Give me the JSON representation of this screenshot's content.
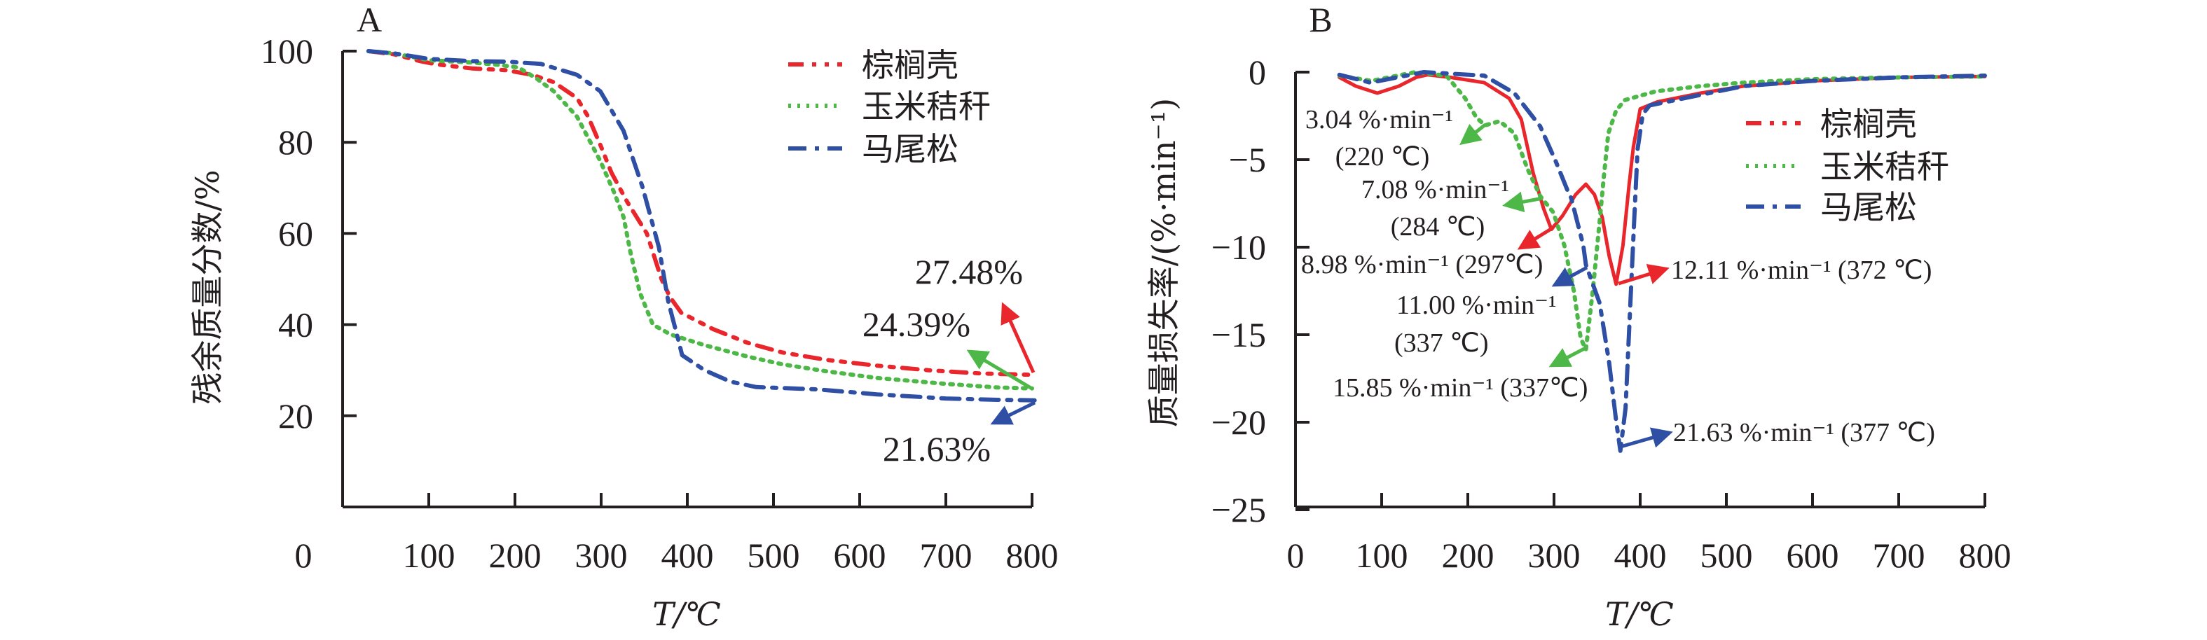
{
  "chart_data": [
    {
      "panel": "A",
      "type": "line",
      "title": "A",
      "xlabel": "T/℃",
      "ylabel": "残余质量分数/%",
      "xlim": [
        0,
        800
      ],
      "ylim": [
        0,
        100
      ],
      "xticks": [
        0,
        100,
        200,
        300,
        400,
        500,
        600,
        700,
        800
      ],
      "yticks": [
        20,
        40,
        60,
        80,
        100
      ],
      "grid": false,
      "legend_position": "top-right",
      "series": [
        {
          "name": "棕榈壳",
          "color": "#e8262b",
          "style": "dash-dot-dot",
          "points": [
            [
              30,
              100
            ],
            [
              60,
              99.3
            ],
            [
              90,
              97.8
            ],
            [
              109,
              97.1
            ],
            [
              150,
              96.2
            ],
            [
              190,
              95.8
            ],
            [
              220,
              94.8
            ],
            [
              245,
              93.2
            ],
            [
              272,
              89.7
            ],
            [
              285,
              85.6
            ],
            [
              300,
              79
            ],
            [
              312,
              73.3
            ],
            [
              330,
              67
            ],
            [
              353,
              60
            ],
            [
              370,
              50
            ],
            [
              380,
              46
            ],
            [
              393,
              42.6
            ],
            [
              430,
              39
            ],
            [
              470,
              36
            ],
            [
              510,
              33.9
            ],
            [
              560,
              32.3
            ],
            [
              620,
              31.0
            ],
            [
              680,
              30.0
            ],
            [
              740,
              29.3
            ],
            [
              796,
              29.0
            ]
          ]
        },
        {
          "name": "玉米秸秆",
          "color": "#4db848",
          "style": "dotted",
          "points": [
            [
              30,
              100
            ],
            [
              60,
              99.5
            ],
            [
              100,
              98
            ],
            [
              150,
              97.5
            ],
            [
              180,
              97
            ],
            [
              204,
              96.4
            ],
            [
              225,
              94
            ],
            [
              245,
              91.2
            ],
            [
              272,
              85.6
            ],
            [
              299,
              75.9
            ],
            [
              315,
              69
            ],
            [
              326,
              63.6
            ],
            [
              334,
              55.9
            ],
            [
              345,
              47
            ],
            [
              360,
              40
            ],
            [
              381,
              37.8
            ],
            [
              420,
              35.5
            ],
            [
              470,
              33
            ],
            [
              510,
              31.3
            ],
            [
              560,
              29.8
            ],
            [
              620,
              28.3
            ],
            [
              700,
              27
            ],
            [
              760,
              26.2
            ],
            [
              800,
              26.0
            ]
          ]
        },
        {
          "name": "马尾松",
          "color": "#2e4fa3",
          "style": "dash-dot",
          "points": [
            [
              30,
              100
            ],
            [
              60,
              99.5
            ],
            [
              100,
              98.3
            ],
            [
              150,
              97.8
            ],
            [
              190,
              97.7
            ],
            [
              230,
              97.2
            ],
            [
              272,
              94.8
            ],
            [
              299,
              91.2
            ],
            [
              326,
              82.5
            ],
            [
              348,
              70.2
            ],
            [
              367,
              57
            ],
            [
              378,
              45
            ],
            [
              389,
              37
            ],
            [
              394,
              33.3
            ],
            [
              420,
              30
            ],
            [
              450,
              27.5
            ],
            [
              480,
              26.3
            ],
            [
              550,
              25.8
            ],
            [
              620,
              24.7
            ],
            [
              700,
              23.8
            ],
            [
              760,
              23.5
            ],
            [
              803,
              23.4
            ]
          ]
        }
      ],
      "annotations": [
        {
          "text": "27.48%",
          "series": "棕榈壳"
        },
        {
          "text": "24.39%",
          "series": "玉米秸秆"
        },
        {
          "text": "21.63%",
          "series": "马尾松"
        }
      ]
    },
    {
      "panel": "B",
      "type": "line",
      "title": "B",
      "xlabel": "T/℃",
      "ylabel": "质量损失率/(%·min⁻¹)",
      "xlim": [
        0,
        800
      ],
      "ylim": [
        -25,
        0
      ],
      "xticks": [
        0,
        100,
        200,
        300,
        400,
        500,
        600,
        700,
        800
      ],
      "yticks": [
        0,
        -5,
        -10,
        -15,
        -20,
        -25
      ],
      "grid": false,
      "legend_position": "right",
      "series": [
        {
          "name": "棕榈壳",
          "color": "#e8262b",
          "style": "solid",
          "points": [
            [
              51,
              -0.3
            ],
            [
              70,
              -0.8
            ],
            [
              95,
              -1.2
            ],
            [
              120,
              -0.8
            ],
            [
              140,
              -0.3
            ],
            [
              153,
              -0.15
            ],
            [
              180,
              -0.3
            ],
            [
              219,
              -0.6
            ],
            [
              248,
              -1.5
            ],
            [
              262,
              -2.7
            ],
            [
              276,
              -5.8
            ],
            [
              288,
              -7.8
            ],
            [
              297,
              -8.98
            ],
            [
              310,
              -8.2
            ],
            [
              325,
              -7
            ],
            [
              337,
              -6.4
            ],
            [
              347,
              -7
            ],
            [
              356,
              -8.3
            ],
            [
              364,
              -10.5
            ],
            [
              372,
              -12.11
            ],
            [
              380,
              -9.9
            ],
            [
              387,
              -6.5
            ],
            [
              392,
              -4.3
            ],
            [
              400,
              -2.1
            ],
            [
              420,
              -1.7
            ],
            [
              470,
              -1.2
            ],
            [
              520,
              -0.8
            ],
            [
              600,
              -0.5
            ],
            [
              700,
              -0.3
            ],
            [
              800,
              -0.25
            ]
          ]
        },
        {
          "name": "玉米秸秆",
          "color": "#4db848",
          "style": "dotted",
          "points": [
            [
              51,
              -0.2
            ],
            [
              88,
              -0.5
            ],
            [
              139,
              0
            ],
            [
              175,
              -0.2
            ],
            [
              197,
              -1.5
            ],
            [
              210,
              -2.6
            ],
            [
              220,
              -3.04
            ],
            [
              237,
              -2.8
            ],
            [
              254,
              -3.5
            ],
            [
              269,
              -5.5
            ],
            [
              284,
              -7.08
            ],
            [
              299,
              -8.0
            ],
            [
              312,
              -9.9
            ],
            [
              323,
              -12.5
            ],
            [
              331,
              -15.2
            ],
            [
              337,
              -15.85
            ],
            [
              345,
              -12.5
            ],
            [
              353,
              -8.5
            ],
            [
              358,
              -5.9
            ],
            [
              363,
              -3.5
            ],
            [
              372,
              -2.2
            ],
            [
              382,
              -1.6
            ],
            [
              418,
              -1.1
            ],
            [
              470,
              -0.8
            ],
            [
              520,
              -0.6
            ],
            [
              600,
              -0.4
            ],
            [
              700,
              -0.3
            ],
            [
              800,
              -0.25
            ]
          ]
        },
        {
          "name": "马尾松",
          "color": "#2e4fa3",
          "style": "dash-dot",
          "points": [
            [
              51,
              -0.15
            ],
            [
              87,
              -0.6
            ],
            [
              149,
              0
            ],
            [
              219,
              -0.2
            ],
            [
              254,
              -1.2
            ],
            [
              284,
              -3.1
            ],
            [
              302,
              -5.1
            ],
            [
              316,
              -6.8
            ],
            [
              320,
              -7.2
            ],
            [
              334,
              -9.9
            ],
            [
              337,
              -11.0
            ],
            [
              353,
              -13.2
            ],
            [
              364,
              -16.6
            ],
            [
              372,
              -19.9
            ],
            [
              377,
              -21.63
            ],
            [
              383,
              -19.2
            ],
            [
              388,
              -13.9
            ],
            [
              393,
              -8.5
            ],
            [
              397,
              -4.4
            ],
            [
              403,
              -2.4
            ],
            [
              411,
              -1.9
            ],
            [
              470,
              -1.3
            ],
            [
              520,
              -0.8
            ],
            [
              600,
              -0.5
            ],
            [
              700,
              -0.3
            ],
            [
              800,
              -0.2
            ]
          ]
        }
      ],
      "annotations": [
        {
          "lines": [
            "3.04 %·min⁻¹",
            "(220 ℃)"
          ],
          "series": "玉米秸秆"
        },
        {
          "lines": [
            "7.08 %·min⁻¹",
            "(284 ℃)"
          ],
          "series": "玉米秸秆"
        },
        {
          "lines": [
            "8.98 %·min⁻¹ (297℃)"
          ],
          "series": "棕榈壳"
        },
        {
          "lines": [
            "11.00 %·min⁻¹",
            "(337  ℃)"
          ],
          "series": "马尾松"
        },
        {
          "lines": [
            "15.85 %·min⁻¹ (337℃)"
          ],
          "series": "玉米秸秆"
        },
        {
          "lines": [
            "12.11 %·min⁻¹ (372 ℃)"
          ],
          "series": "棕榈壳"
        },
        {
          "lines": [
            "21.63 %·min⁻¹ (377  ℃)"
          ],
          "series": "马尾松"
        }
      ]
    }
  ]
}
